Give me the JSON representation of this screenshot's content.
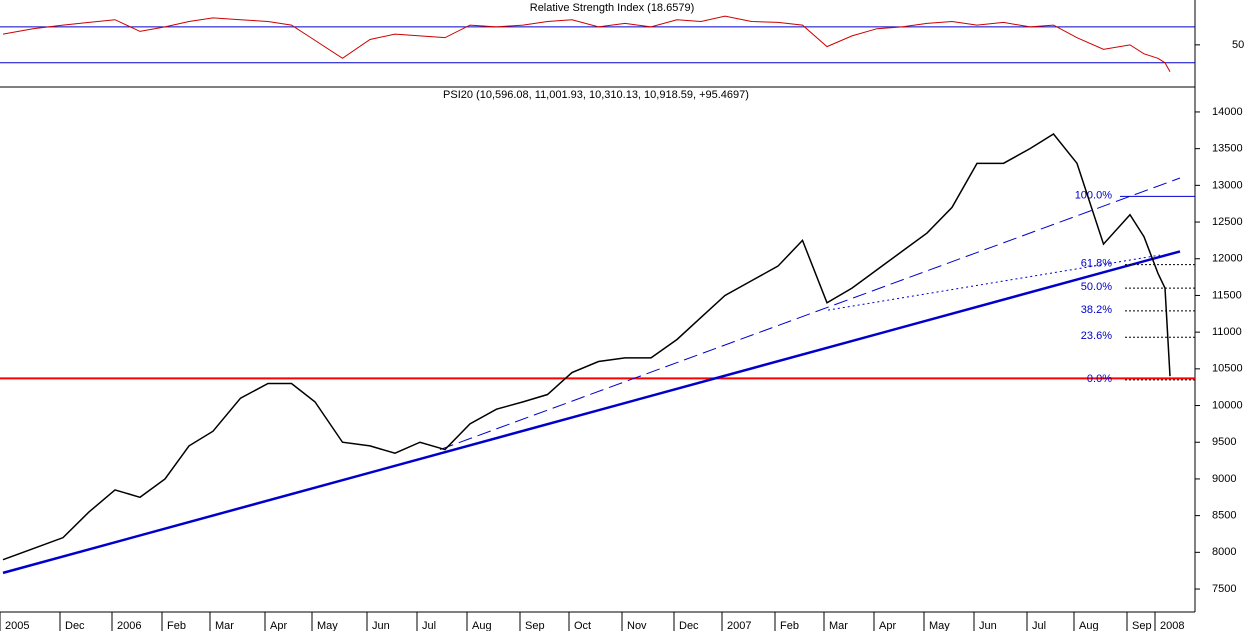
{
  "chart_data": [
    {
      "type": "line",
      "title": "Relative Strength Index (18.6579)",
      "color": "#cc0000",
      "values": [
        62,
        68,
        72,
        75,
        78,
        65,
        70,
        76,
        80,
        78,
        76,
        72,
        55,
        35,
        56,
        62,
        60,
        58,
        72,
        70,
        72,
        76,
        78,
        70,
        74,
        70,
        78,
        76,
        82,
        76,
        75,
        72,
        48,
        60,
        68,
        70,
        74,
        76,
        72,
        75,
        70,
        72,
        58,
        45,
        50,
        40,
        35,
        30,
        20
      ],
      "ylim": [
        3,
        100
      ],
      "yticks": [
        50
      ],
      "levels": [
        30,
        70
      ],
      "level_color": "#0000cc"
    },
    {
      "type": "line",
      "title": "PSI20 (10,596.08, 11,001.93, 10,310.13, 10,918.59, +95.4697)",
      "color": "#000000",
      "categories": [
        "2005",
        null,
        "Dec",
        null,
        "2006",
        null,
        "Feb",
        null,
        "Mar",
        null,
        "Apr",
        null,
        "May",
        null,
        "Jun",
        null,
        "Jul",
        null,
        "Aug",
        null,
        "Sep",
        null,
        "Oct",
        null,
        "Nov",
        null,
        "Dec",
        null,
        "2007",
        null,
        "Feb",
        null,
        "Mar",
        null,
        "Apr",
        null,
        "May",
        null,
        "Jun",
        null,
        "Jul",
        null,
        "Aug",
        null,
        "Sep",
        null,
        "2008",
        null,
        null
      ],
      "values": [
        7900,
        8050,
        8200,
        8550,
        8850,
        8750,
        9000,
        9450,
        9650,
        10100,
        10300,
        10300,
        10050,
        9500,
        9450,
        9350,
        9500,
        9400,
        9750,
        9950,
        10050,
        10150,
        10450,
        10600,
        10650,
        10650,
        10900,
        11200,
        11500,
        11700,
        11900,
        12250,
        11400,
        11600,
        11850,
        12100,
        12350,
        12700,
        13300,
        13300,
        13500,
        13700,
        13300,
        12200,
        12600,
        12300,
        11800,
        11600,
        10400
      ],
      "ylim": [
        7187,
        14340
      ],
      "yticks": [
        7500,
        8000,
        8500,
        9000,
        9500,
        10000,
        10500,
        11000,
        11500,
        12000,
        12500,
        13000,
        13500,
        14000
      ],
      "support_line": {
        "value": 10370,
        "color": "#ff0000"
      },
      "trendlines": [
        {
          "values": [
            7720,
            12100
          ],
          "style": "solid",
          "color": "#0000cc"
        },
        {
          "values": [
            9400,
            13100
          ],
          "style": "dashed",
          "color": "#0000cc"
        },
        {
          "values": [
            11300,
            12050
          ],
          "style": "dotted",
          "color": "#0000cc"
        }
      ],
      "fib_levels": [
        {
          "label": "100.0%",
          "price": 12850
        },
        {
          "label": "61.8%",
          "price": 11920
        },
        {
          "label": "50.0%",
          "price": 11600
        },
        {
          "label": "38.2%",
          "price": 11290
        },
        {
          "label": "23.6%",
          "price": 10930
        },
        {
          "label": "0.0%",
          "price": 10350
        }
      ]
    }
  ]
}
